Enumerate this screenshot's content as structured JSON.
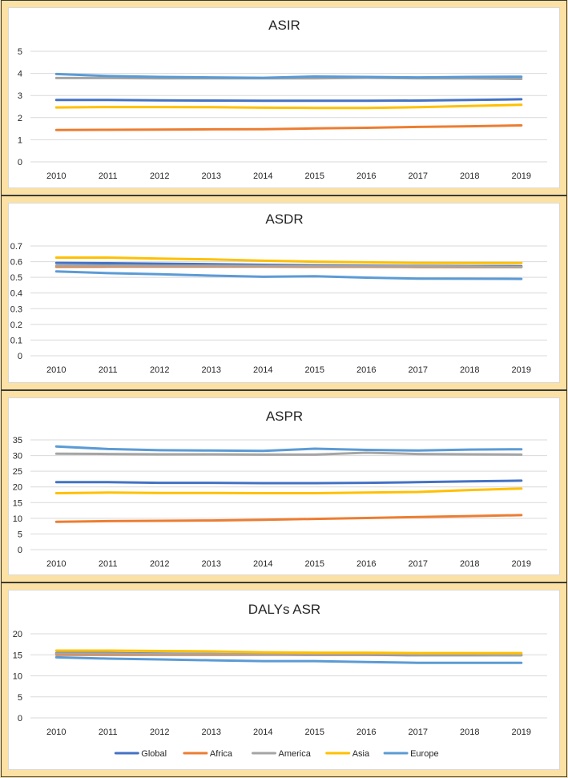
{
  "chart_data": [
    {
      "type": "line",
      "title": "ASIR",
      "categories": [
        "2010",
        "2011",
        "2012",
        "2013",
        "2014",
        "2015",
        "2016",
        "2017",
        "2018",
        "2019"
      ],
      "ylim": [
        0,
        5
      ],
      "yticks": [
        0,
        1,
        2,
        3,
        4,
        5
      ],
      "ytick_labels": [
        "0",
        "1",
        "2",
        "3",
        "4",
        "5"
      ],
      "grid": true,
      "series": [
        {
          "name": "Global",
          "values": [
            2.8,
            2.8,
            2.78,
            2.77,
            2.76,
            2.76,
            2.76,
            2.77,
            2.8,
            2.83
          ]
        },
        {
          "name": "Africa",
          "values": [
            1.44,
            1.45,
            1.46,
            1.47,
            1.48,
            1.51,
            1.54,
            1.58,
            1.61,
            1.65
          ]
        },
        {
          "name": "America",
          "values": [
            3.79,
            3.79,
            3.78,
            3.78,
            3.78,
            3.78,
            3.8,
            3.78,
            3.77,
            3.75
          ]
        },
        {
          "name": "Asia",
          "values": [
            2.46,
            2.48,
            2.48,
            2.47,
            2.45,
            2.44,
            2.44,
            2.47,
            2.53,
            2.58
          ]
        },
        {
          "name": "Europe",
          "values": [
            3.97,
            3.88,
            3.84,
            3.82,
            3.8,
            3.86,
            3.84,
            3.82,
            3.84,
            3.85
          ]
        }
      ]
    },
    {
      "type": "line",
      "title": "ASDR",
      "categories": [
        "2010",
        "2011",
        "2012",
        "2013",
        "2014",
        "2015",
        "2016",
        "2017",
        "2018",
        "2019"
      ],
      "ylim": [
        0,
        0.7
      ],
      "yticks": [
        0,
        0.1,
        0.2,
        0.3,
        0.4,
        0.5,
        0.6,
        0.7
      ],
      "ytick_labels": [
        "0",
        "0.1",
        "0.2",
        "0.3",
        "0.4",
        "0.5",
        "0.6",
        "0.7"
      ],
      "grid": true,
      "series": [
        {
          "name": "Global",
          "values": [
            0.592,
            0.59,
            0.587,
            0.584,
            0.58,
            0.577,
            0.575,
            0.573,
            0.572,
            0.571
          ]
        },
        {
          "name": "Africa",
          "values": [
            0.567,
            0.568,
            0.568,
            0.568,
            0.568,
            0.567,
            0.567,
            0.566,
            0.565,
            0.565
          ]
        },
        {
          "name": "America",
          "values": [
            0.575,
            0.575,
            0.574,
            0.574,
            0.573,
            0.572,
            0.572,
            0.57,
            0.568,
            0.566
          ]
        },
        {
          "name": "Asia",
          "values": [
            0.626,
            0.626,
            0.62,
            0.614,
            0.606,
            0.6,
            0.596,
            0.592,
            0.591,
            0.591
          ]
        },
        {
          "name": "Europe",
          "values": [
            0.538,
            0.527,
            0.52,
            0.511,
            0.504,
            0.507,
            0.498,
            0.492,
            0.491,
            0.49
          ]
        }
      ]
    },
    {
      "type": "line",
      "title": "ASPR",
      "categories": [
        "2010",
        "2011",
        "2012",
        "2013",
        "2014",
        "2015",
        "2016",
        "2017",
        "2018",
        "2019"
      ],
      "ylim": [
        0,
        35
      ],
      "yticks": [
        0,
        5,
        10,
        15,
        20,
        25,
        30,
        35
      ],
      "ytick_labels": [
        "0",
        "5",
        "10",
        "15",
        "20",
        "25",
        "30",
        "35"
      ],
      "grid": true,
      "series": [
        {
          "name": "Global",
          "values": [
            21.5,
            21.5,
            21.3,
            21.3,
            21.2,
            21.2,
            21.3,
            21.5,
            21.8,
            22.0
          ]
        },
        {
          "name": "Africa",
          "values": [
            8.9,
            9.1,
            9.2,
            9.3,
            9.5,
            9.8,
            10.1,
            10.4,
            10.7,
            11.0
          ]
        },
        {
          "name": "America",
          "values": [
            30.6,
            30.5,
            30.4,
            30.4,
            30.3,
            30.3,
            30.9,
            30.5,
            30.4,
            30.3
          ]
        },
        {
          "name": "Asia",
          "values": [
            18.0,
            18.2,
            18.1,
            18.1,
            18.0,
            18.0,
            18.2,
            18.4,
            19.0,
            19.5
          ]
        },
        {
          "name": "Europe",
          "values": [
            32.9,
            32.1,
            31.7,
            31.6,
            31.5,
            32.2,
            31.8,
            31.6,
            31.9,
            32.0
          ]
        }
      ]
    },
    {
      "type": "line",
      "title": "DALYs ASR",
      "categories": [
        "2010",
        "2011",
        "2012",
        "2013",
        "2014",
        "2015",
        "2016",
        "2017",
        "2018",
        "2019"
      ],
      "ylim": [
        0,
        20
      ],
      "yticks": [
        0,
        5,
        10,
        15,
        20
      ],
      "ytick_labels": [
        "0",
        "5",
        "10",
        "15",
        "20"
      ],
      "grid": true,
      "legend": "bottom",
      "series": [
        {
          "name": "Global",
          "values": [
            15.4,
            15.4,
            15.3,
            15.2,
            15.1,
            15.0,
            15.0,
            14.9,
            14.9,
            14.9
          ]
        },
        {
          "name": "Africa",
          "values": [
            15.0,
            15.0,
            15.0,
            15.0,
            15.0,
            15.0,
            15.0,
            15.0,
            15.0,
            15.0
          ]
        },
        {
          "name": "America",
          "values": [
            15.3,
            15.3,
            15.2,
            15.2,
            15.1,
            15.1,
            15.1,
            15.0,
            15.0,
            14.9
          ]
        },
        {
          "name": "Asia",
          "values": [
            16.0,
            16.0,
            15.9,
            15.8,
            15.6,
            15.5,
            15.5,
            15.4,
            15.4,
            15.4
          ]
        },
        {
          "name": "Europe",
          "values": [
            14.4,
            14.1,
            13.9,
            13.7,
            13.5,
            13.5,
            13.3,
            13.1,
            13.1,
            13.1
          ]
        }
      ]
    }
  ],
  "legend_items": [
    {
      "name": "Global",
      "color": "#4472c4"
    },
    {
      "name": "Africa",
      "color": "#ed7d31"
    },
    {
      "name": "America",
      "color": "#a5a5a5"
    },
    {
      "name": "Asia",
      "color": "#ffc000"
    },
    {
      "name": "Europe",
      "color": "#5b9bd5"
    }
  ],
  "series_colors": {
    "Global": "#4472c4",
    "Africa": "#ed7d31",
    "America": "#a5a5a5",
    "Asia": "#ffc000",
    "Europe": "#5b9bd5"
  },
  "colors": {
    "panel_background": "#fbe1a4",
    "plot_background": "#ffffff",
    "gridline": "#d9d9d9",
    "text": "#262626"
  }
}
